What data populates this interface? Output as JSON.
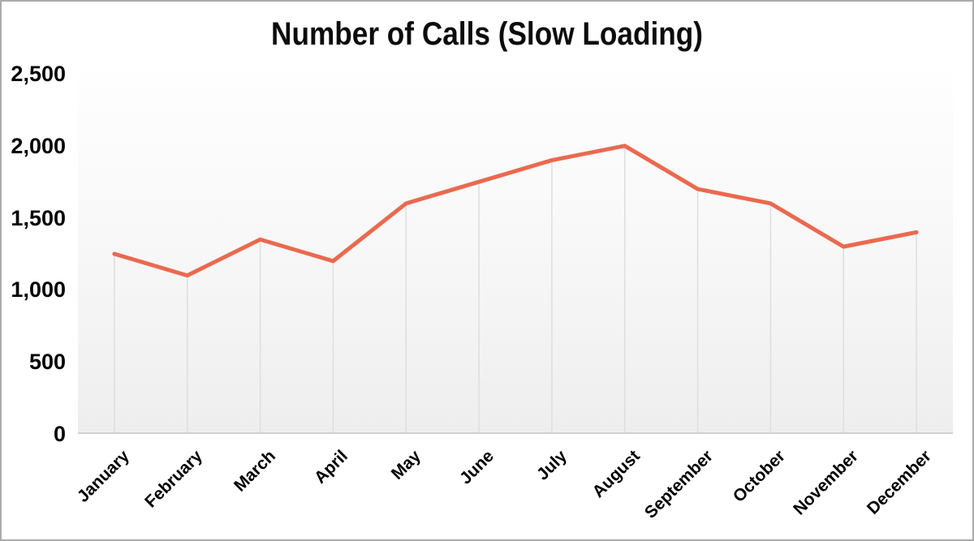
{
  "window": {
    "frame_border_color": "#ABABAB",
    "background_color": "#FFFFFF"
  },
  "chart_data": {
    "type": "line",
    "title": "Number of Calls (Slow Loading)",
    "categories": [
      "January",
      "February",
      "March",
      "April",
      "May",
      "June",
      "July",
      "August",
      "September",
      "October",
      "November",
      "December"
    ],
    "series": [
      {
        "name": "Number of Calls",
        "values": [
          1250,
          1100,
          1350,
          1200,
          1600,
          1750,
          1900,
          2000,
          1700,
          1600,
          1300,
          1400
        ],
        "color": "#E96A4F"
      }
    ],
    "xlabel": "",
    "ylabel": "",
    "ylim": [
      0,
      2500
    ],
    "ytick_interval": 500,
    "ytick_labels": [
      "0",
      "500",
      "1,000",
      "1,500",
      "2,000",
      "2,500"
    ],
    "grid": "vertical-drop-lines-only",
    "legend_position": "none",
    "colors": {
      "line": "#E96A4F",
      "drop_line": "#DEDEDE",
      "axis_line": "#D2D2D2",
      "text": "#000000",
      "plot_bg_top": "#FEFEFE",
      "plot_bg_bottom": "#EEEEEE"
    }
  }
}
